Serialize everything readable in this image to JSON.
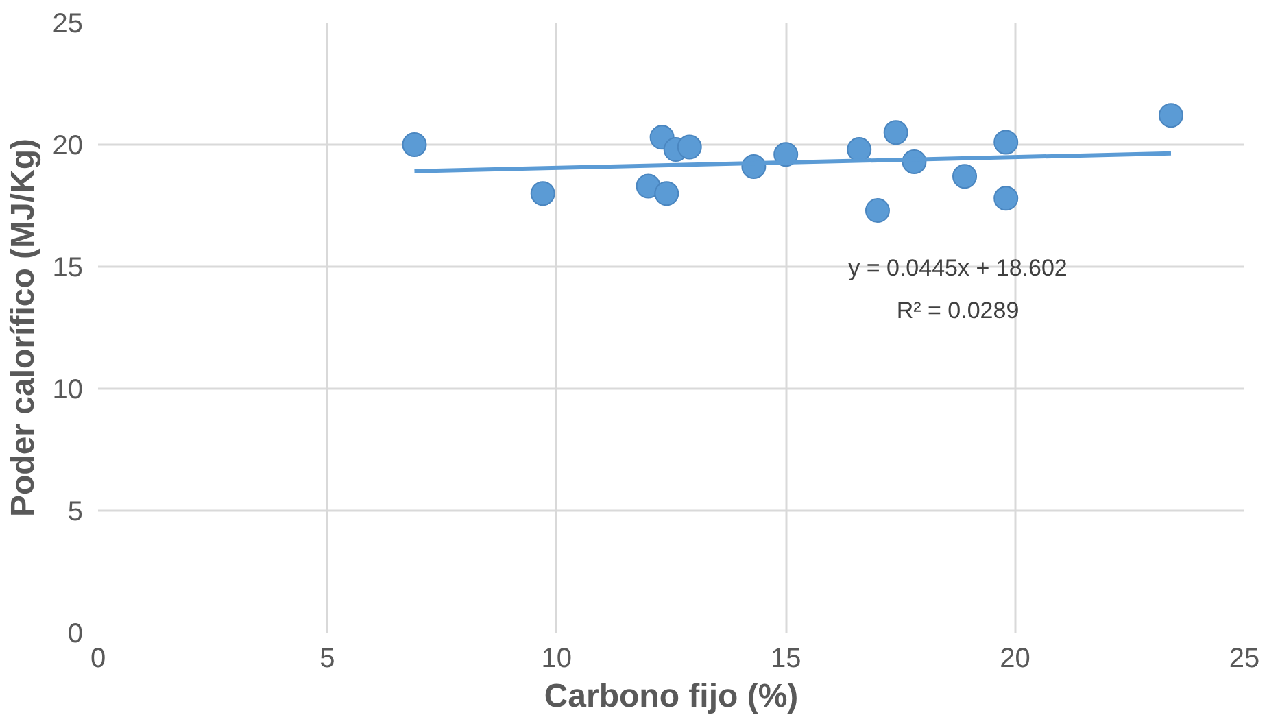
{
  "chart_data": {
    "type": "scatter",
    "xlabel": "Carbono fijo (%)",
    "ylabel": "Poder calorífico (MJ/Kg)",
    "xlim": [
      0,
      25
    ],
    "ylim": [
      0,
      25
    ],
    "xticks": [
      0,
      5,
      10,
      15,
      20,
      25
    ],
    "yticks": [
      0,
      5,
      10,
      15,
      20,
      25
    ],
    "grid": true,
    "annotations": [
      "y = 0.0445x + 18.602",
      "R² = 0.0289"
    ],
    "series": [
      {
        "marker": "circle",
        "color": "#5b9bd5",
        "x": [
          6.9,
          9.7,
          12.0,
          12.3,
          12.4,
          12.6,
          12.9,
          14.3,
          15.0,
          16.6,
          17.0,
          17.4,
          17.8,
          18.9,
          19.8,
          19.8,
          23.4
        ],
        "values": [
          20.0,
          18.0,
          18.3,
          20.3,
          18.0,
          19.8,
          19.9,
          19.1,
          19.6,
          19.8,
          17.3,
          20.5,
          19.3,
          18.7,
          20.1,
          17.8,
          21.2
        ]
      },
      {
        "type": "line",
        "color": "#5b9bd5",
        "x": [
          6.9,
          23.4
        ],
        "values": [
          18.91,
          19.64
        ]
      }
    ]
  }
}
